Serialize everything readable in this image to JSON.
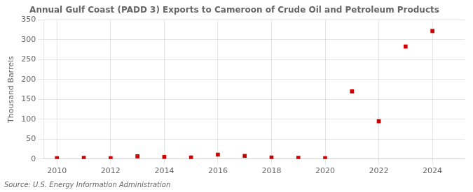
{
  "chart_data": {
    "type": "scatter",
    "title": "Annual Gulf Coast (PADD 3) Exports to Cameroon of Crude Oil and Petroleum Products",
    "y_label": "Thousand Barrels",
    "source": "Source: U.S. Energy Information Administration",
    "x": [
      2010,
      2011,
      2012,
      2013,
      2014,
      2015,
      2016,
      2017,
      2018,
      2019,
      2020,
      2021,
      2022,
      2023,
      2024
    ],
    "values": [
      2,
      3,
      2,
      7,
      5,
      4,
      11,
      8,
      4,
      3,
      2,
      170,
      95,
      283,
      322
    ],
    "color": "#cc0000",
    "marker": "square",
    "xlim": [
      2009.5,
      2025.2
    ],
    "xticks": [
      2010,
      2012,
      2014,
      2016,
      2018,
      2020,
      2022,
      2024
    ],
    "ylim": [
      0,
      350
    ],
    "yticks": [
      0,
      50,
      100,
      150,
      200,
      250,
      300,
      350
    ],
    "grid": true
  }
}
